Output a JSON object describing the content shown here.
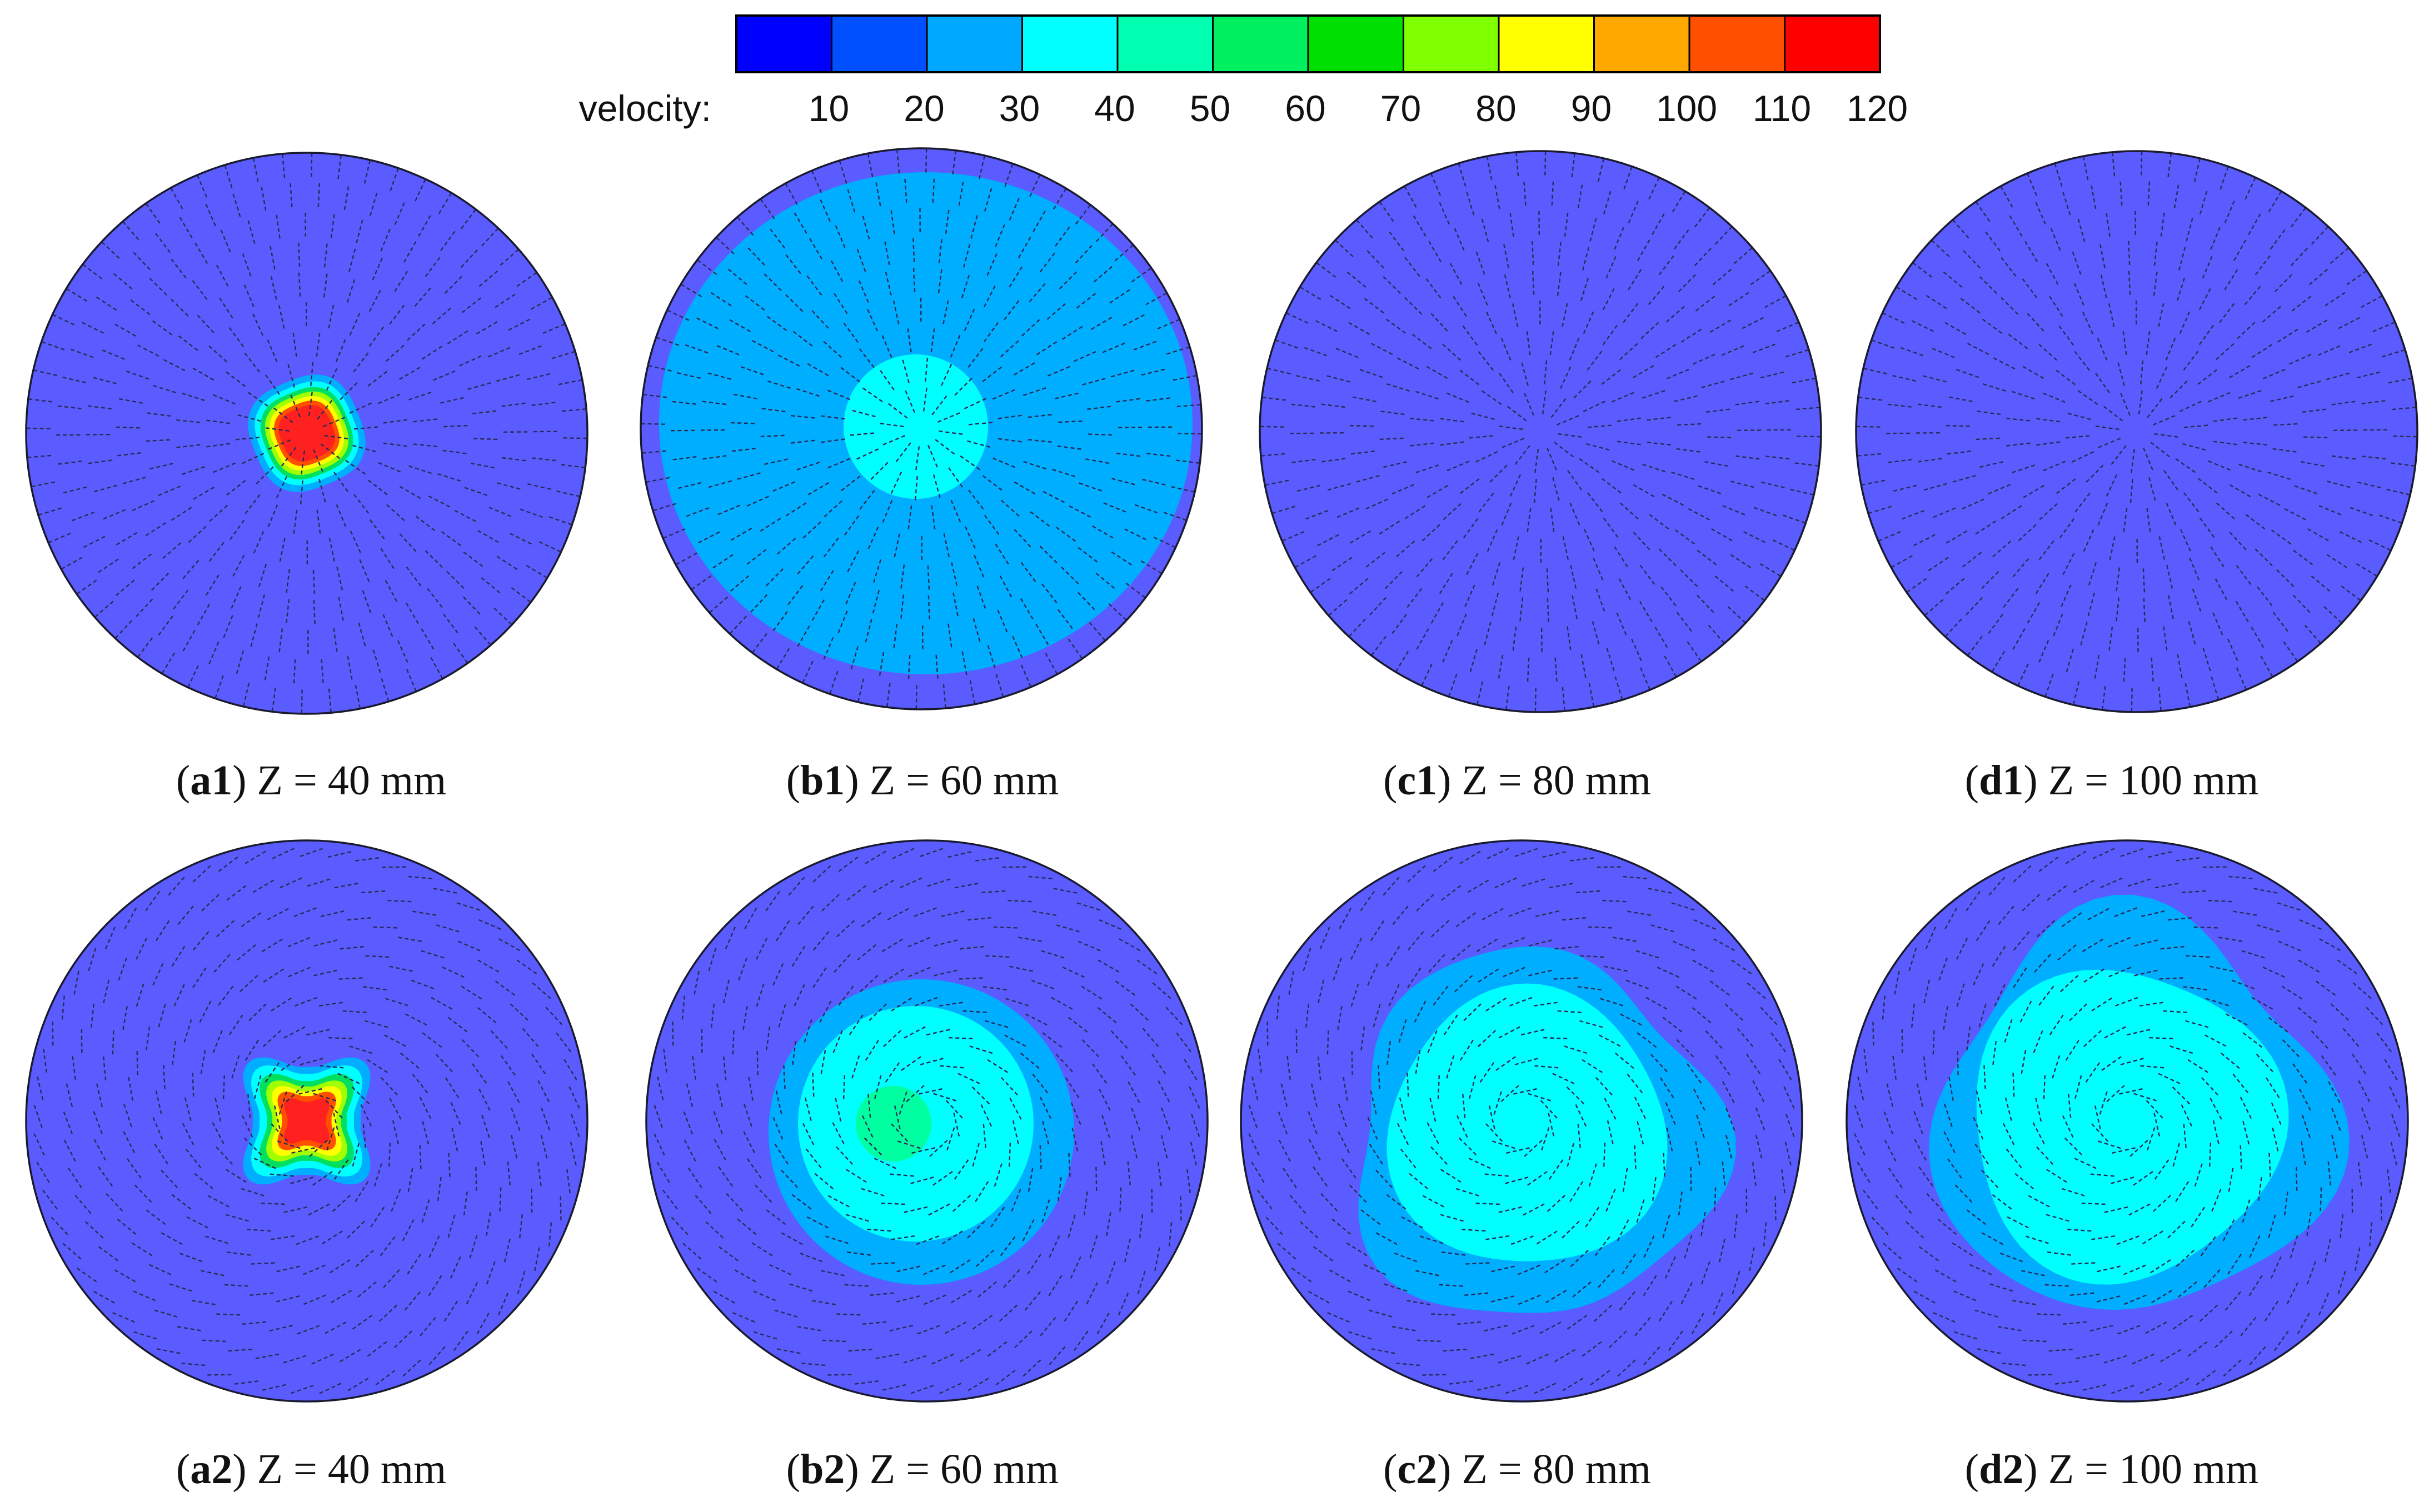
{
  "legend": {
    "title": "velocity:",
    "ticks": [
      "10",
      "20",
      "30",
      "40",
      "50",
      "60",
      "70",
      "80",
      "90",
      "100",
      "110",
      "120"
    ],
    "colors": [
      "#0000ff",
      "#0050ff",
      "#00a8ff",
      "#00ffff",
      "#00ffb0",
      "#00f060",
      "#00e000",
      "#80ff00",
      "#ffff00",
      "#ffa800",
      "#ff5000",
      "#ff0000"
    ]
  },
  "panels": [
    {
      "id": "a1",
      "tag": "a1",
      "rest": " Z = 40 mm"
    },
    {
      "id": "b1",
      "tag": "b1",
      "rest": " Z = 60 mm"
    },
    {
      "id": "c1",
      "tag": "c1",
      "rest": " Z = 80 mm"
    },
    {
      "id": "d1",
      "tag": "d1",
      "rest": " Z = 100 mm"
    },
    {
      "id": "a2",
      "tag": "a2",
      "rest": " Z = 40 mm"
    },
    {
      "id": "b2",
      "tag": "b2",
      "rest": " Z = 60 mm"
    },
    {
      "id": "c2",
      "tag": "c2",
      "rest": " Z = 80 mm"
    },
    {
      "id": "d2",
      "tag": "d2",
      "rest": " Z = 100 mm"
    }
  ],
  "field_colors": {
    "background": "#5a5cff",
    "band_30": "#00aeff",
    "band_40": "#00ffff",
    "band_50": "#00ffa0",
    "band_60": "#00e060",
    "band_80": "#a0ff00",
    "band_90": "#ffff00",
    "band_100": "#ffa000",
    "band_110": "#ff5000",
    "band_120": "#ff2020"
  }
}
